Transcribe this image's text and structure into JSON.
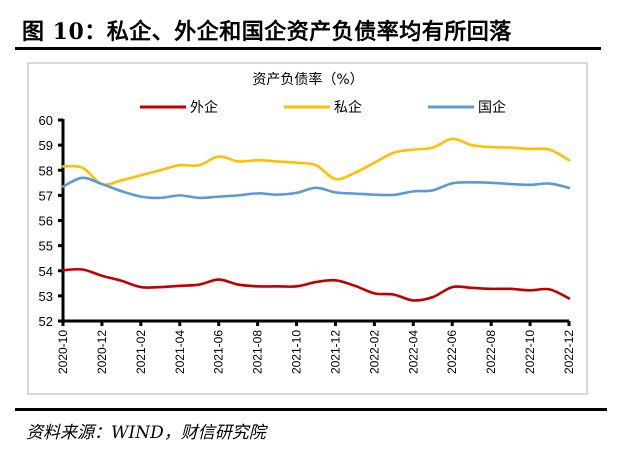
{
  "figure": {
    "title": "图 10：私企、外企和国企资产负债率均有所回落",
    "source": "资料来源：WIND，财信研究院"
  },
  "colors": {
    "外企": "#c00000",
    "私企": "#ffc000",
    "国企": "#5b9bd5",
    "frame": "#d9d9d9"
  },
  "chart_data": {
    "type": "line",
    "title": "资产负债率（%）",
    "xlabel": "",
    "ylabel": "",
    "ylim": [
      52,
      60
    ],
    "yticks": [
      52,
      53,
      54,
      55,
      56,
      57,
      58,
      59,
      60
    ],
    "grid": false,
    "legend_position": "top",
    "x": [
      "2020-10",
      "2020-11",
      "2020-12",
      "2021-01",
      "2021-02",
      "2021-03",
      "2021-04",
      "2021-05",
      "2021-06",
      "2021-07",
      "2021-08",
      "2021-09",
      "2021-10",
      "2021-11",
      "2021-12",
      "2022-01",
      "2022-02",
      "2022-03",
      "2022-04",
      "2022-05",
      "2022-06",
      "2022-07",
      "2022-08",
      "2022-09",
      "2022-10",
      "2022-11",
      "2022-12"
    ],
    "xtick_labels": [
      "2020-10",
      "2020-12",
      "2021-02",
      "2021-04",
      "2021-06",
      "2021-08",
      "2021-10",
      "2021-12",
      "2022-02",
      "2022-04",
      "2022-06",
      "2022-08",
      "2022-10",
      "2022-12"
    ],
    "series": [
      {
        "name": "外企",
        "values": [
          54.02,
          54.05,
          53.8,
          53.6,
          53.35,
          53.35,
          53.4,
          53.45,
          53.65,
          53.45,
          53.38,
          53.38,
          53.38,
          53.55,
          53.62,
          53.4,
          53.1,
          53.05,
          52.82,
          52.95,
          53.35,
          53.32,
          53.28,
          53.28,
          53.22,
          53.26,
          52.9
        ]
      },
      {
        "name": "私企",
        "values": [
          58.15,
          58.1,
          57.45,
          57.6,
          57.8,
          58.0,
          58.2,
          58.2,
          58.55,
          58.35,
          58.4,
          58.35,
          58.3,
          58.2,
          57.65,
          57.9,
          58.3,
          58.7,
          58.82,
          58.9,
          59.25,
          59.0,
          58.92,
          58.9,
          58.85,
          58.82,
          58.4
        ]
      },
      {
        "name": "国企",
        "values": [
          57.35,
          57.7,
          57.45,
          57.17,
          56.95,
          56.9,
          57.0,
          56.9,
          56.95,
          57.0,
          57.08,
          57.03,
          57.1,
          57.3,
          57.12,
          57.07,
          57.03,
          57.02,
          57.16,
          57.2,
          57.48,
          57.52,
          57.5,
          57.45,
          57.42,
          57.47,
          57.3
        ]
      }
    ]
  }
}
